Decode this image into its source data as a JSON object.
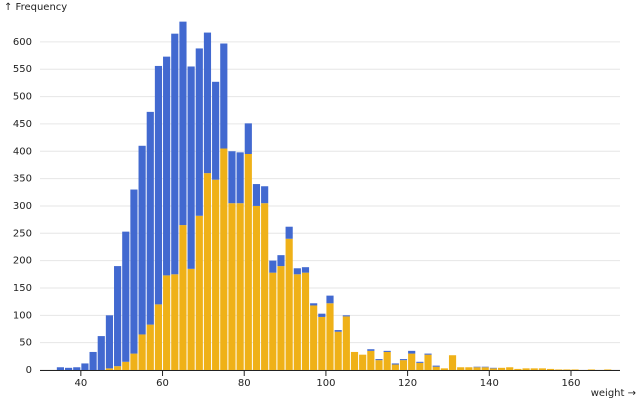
{
  "chart_data": {
    "type": "histogram",
    "x_label": "weight →",
    "y_label": "↑ Frequency",
    "bins": [
      30,
      32,
      34,
      36,
      38,
      40,
      42,
      44,
      46,
      48,
      50,
      52,
      54,
      56,
      58,
      60,
      62,
      64,
      66,
      68,
      70,
      72,
      74,
      76,
      78,
      80,
      82,
      84,
      86,
      88,
      90,
      92,
      94,
      96,
      98,
      100,
      102,
      104,
      106,
      108,
      110,
      112,
      114,
      116,
      118,
      120,
      122,
      124,
      126,
      128,
      130,
      132,
      134,
      136,
      138,
      140,
      142,
      144,
      146,
      148,
      150,
      152,
      154,
      156,
      158,
      160,
      162,
      164,
      166,
      168,
      170,
      172
    ],
    "series": [
      {
        "color": "#efb118",
        "values": [
          0,
          0,
          0,
          0,
          0,
          0,
          0,
          0,
          3,
          7,
          15,
          30,
          65,
          83,
          120,
          173,
          175,
          265,
          185,
          282,
          360,
          348,
          405,
          305,
          305,
          395,
          300,
          305,
          178,
          190,
          240,
          175,
          178,
          118,
          97,
          122,
          70,
          98,
          33,
          28,
          35,
          18,
          33,
          10,
          18,
          30,
          13,
          28,
          6,
          3,
          27,
          5,
          5,
          5,
          5,
          3,
          4,
          5,
          2,
          3,
          3,
          3,
          2,
          1,
          1,
          1,
          0,
          1,
          0,
          1,
          0
        ]
      },
      {
        "color": "#4269d0",
        "values": [
          0,
          0,
          5,
          4,
          5,
          12,
          33,
          62,
          97,
          183,
          238,
          300,
          345,
          389,
          436,
          400,
          440,
          372,
          370,
          306,
          257,
          179,
          192,
          95,
          93,
          56,
          40,
          31,
          22,
          20,
          22,
          11,
          10,
          4,
          6,
          14,
          3,
          2,
          0,
          0,
          3,
          2,
          2,
          2,
          2,
          5,
          2,
          2,
          2,
          0,
          0,
          0,
          0,
          1,
          1,
          1,
          0,
          0,
          0,
          0,
          0,
          0,
          0,
          0,
          0,
          0,
          0,
          0,
          0,
          0,
          0
        ]
      }
    ],
    "xlim": [
      30,
      172
    ],
    "xticks": [
      40,
      60,
      80,
      100,
      120,
      140,
      160
    ],
    "ylim": [
      0,
      640
    ],
    "yticks": [
      0,
      50,
      100,
      150,
      200,
      250,
      300,
      350,
      400,
      450,
      500,
      550,
      600
    ],
    "grid": true,
    "stacked": true
  }
}
